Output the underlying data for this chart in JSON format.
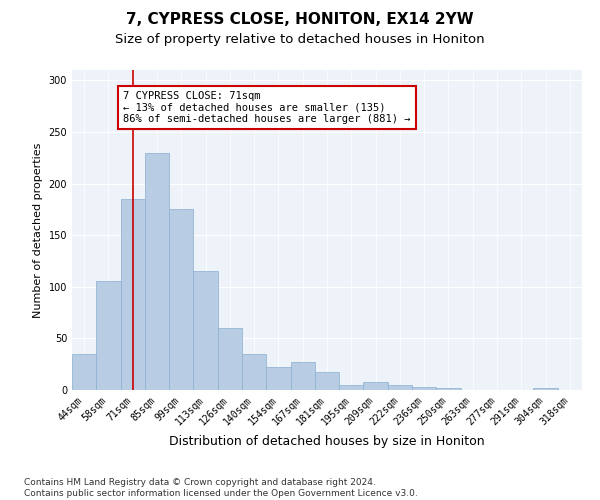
{
  "title": "7, CYPRESS CLOSE, HONITON, EX14 2YW",
  "subtitle": "Size of property relative to detached houses in Honiton",
  "xlabel": "Distribution of detached houses by size in Honiton",
  "ylabel": "Number of detached properties",
  "categories": [
    "44sqm",
    "58sqm",
    "71sqm",
    "85sqm",
    "99sqm",
    "113sqm",
    "126sqm",
    "140sqm",
    "154sqm",
    "167sqm",
    "181sqm",
    "195sqm",
    "209sqm",
    "222sqm",
    "236sqm",
    "250sqm",
    "263sqm",
    "277sqm",
    "291sqm",
    "304sqm",
    "318sqm"
  ],
  "values": [
    35,
    106,
    185,
    230,
    175,
    115,
    60,
    35,
    22,
    27,
    17,
    5,
    8,
    5,
    3,
    2,
    0,
    0,
    0,
    2,
    0
  ],
  "bar_color": "#b8cce4",
  "bar_edge_color": "#8aafd0",
  "highlight_line_index": 2,
  "highlight_color": "#cc0000",
  "annotation_text": "7 CYPRESS CLOSE: 71sqm\n← 13% of detached houses are smaller (135)\n86% of semi-detached houses are larger (881) →",
  "annotation_box_facecolor": "#ffffff",
  "annotation_box_edgecolor": "#cc0000",
  "ylim": [
    0,
    310
  ],
  "yticks": [
    0,
    50,
    100,
    150,
    200,
    250,
    300
  ],
  "background_color": "#eef2f9",
  "grid_color": "#ffffff",
  "footer_text": "Contains HM Land Registry data © Crown copyright and database right 2024.\nContains public sector information licensed under the Open Government Licence v3.0.",
  "title_fontsize": 11,
  "subtitle_fontsize": 9.5,
  "xlabel_fontsize": 9,
  "ylabel_fontsize": 8,
  "tick_fontsize": 7,
  "annotation_fontsize": 7.5,
  "footer_fontsize": 6.5
}
